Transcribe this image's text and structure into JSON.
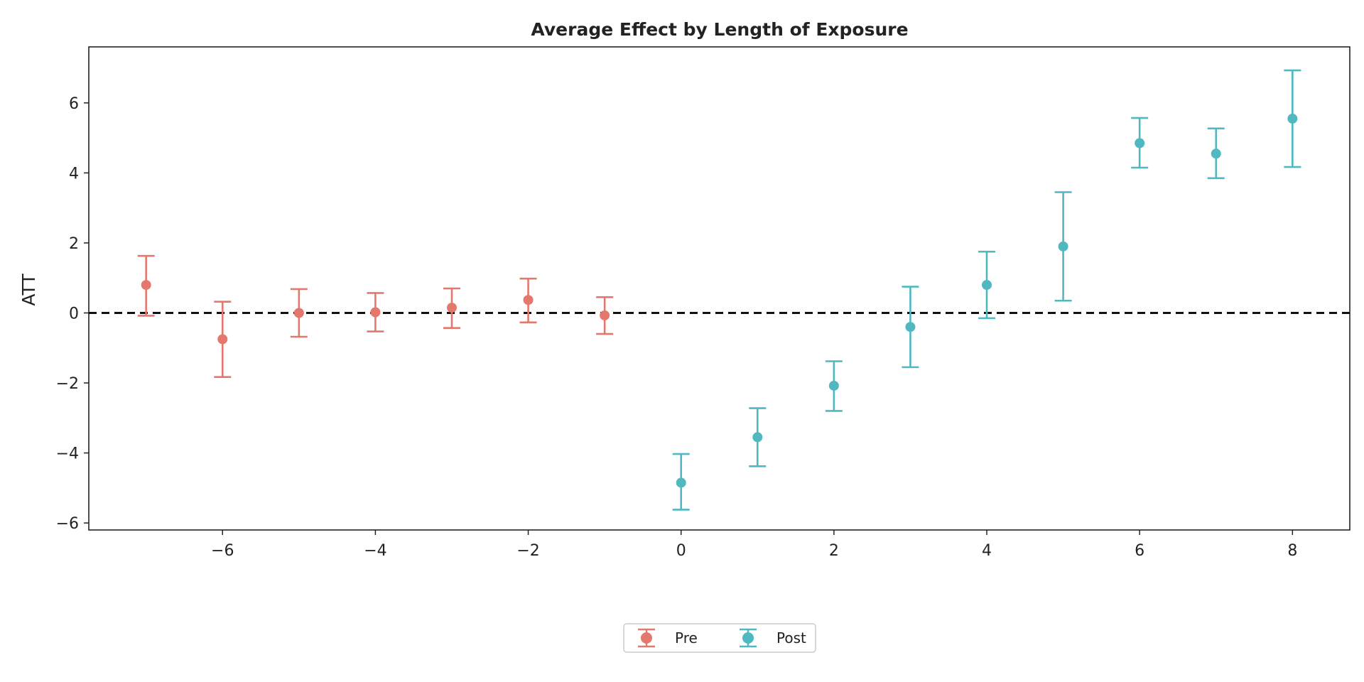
{
  "chart_data": {
    "type": "scatter",
    "title": "Average Effect by Length of Exposure",
    "xlabel": "",
    "ylabel": "ATT",
    "xlim": [
      -7.75,
      8.75
    ],
    "ylim": [
      -6.2,
      7.6
    ],
    "xticks": [
      -6,
      -4,
      -2,
      0,
      2,
      4,
      6,
      8
    ],
    "xtick_labels": [
      "−6",
      "−4",
      "−2",
      "0",
      "2",
      "4",
      "6",
      "8"
    ],
    "yticks": [
      -6,
      -4,
      -2,
      0,
      2,
      4,
      6
    ],
    "ytick_labels": [
      "−6",
      "−4",
      "−2",
      "0",
      "2",
      "4",
      "6"
    ],
    "reference_line": {
      "y": 0,
      "style": "dashed",
      "color": "#111111"
    },
    "grid": false,
    "legend_position": "bottom-center",
    "series": [
      {
        "name": "Pre",
        "color": "#E5786D",
        "x": [
          -7,
          -6,
          -5,
          -4,
          -3,
          -2,
          -1
        ],
        "y": [
          0.8,
          -0.75,
          0.0,
          0.02,
          0.15,
          0.37,
          -0.07
        ],
        "ci_low": [
          -0.08,
          -1.83,
          -0.68,
          -0.53,
          -0.43,
          -0.27,
          -0.6
        ],
        "ci_high": [
          1.63,
          0.32,
          0.68,
          0.57,
          0.7,
          0.98,
          0.45
        ]
      },
      {
        "name": "Post",
        "color": "#4FB8C0",
        "x": [
          0,
          1,
          2,
          3,
          4,
          5,
          6,
          7,
          8
        ],
        "y": [
          -4.85,
          -3.55,
          -2.08,
          -0.4,
          0.8,
          1.9,
          4.85,
          4.55,
          5.55
        ],
        "ci_low": [
          -5.62,
          -4.38,
          -2.8,
          -1.55,
          -0.15,
          0.35,
          4.15,
          3.85,
          4.17
        ],
        "ci_high": [
          -4.03,
          -2.72,
          -1.38,
          0.75,
          1.75,
          3.45,
          5.57,
          5.27,
          6.93
        ]
      }
    ]
  }
}
